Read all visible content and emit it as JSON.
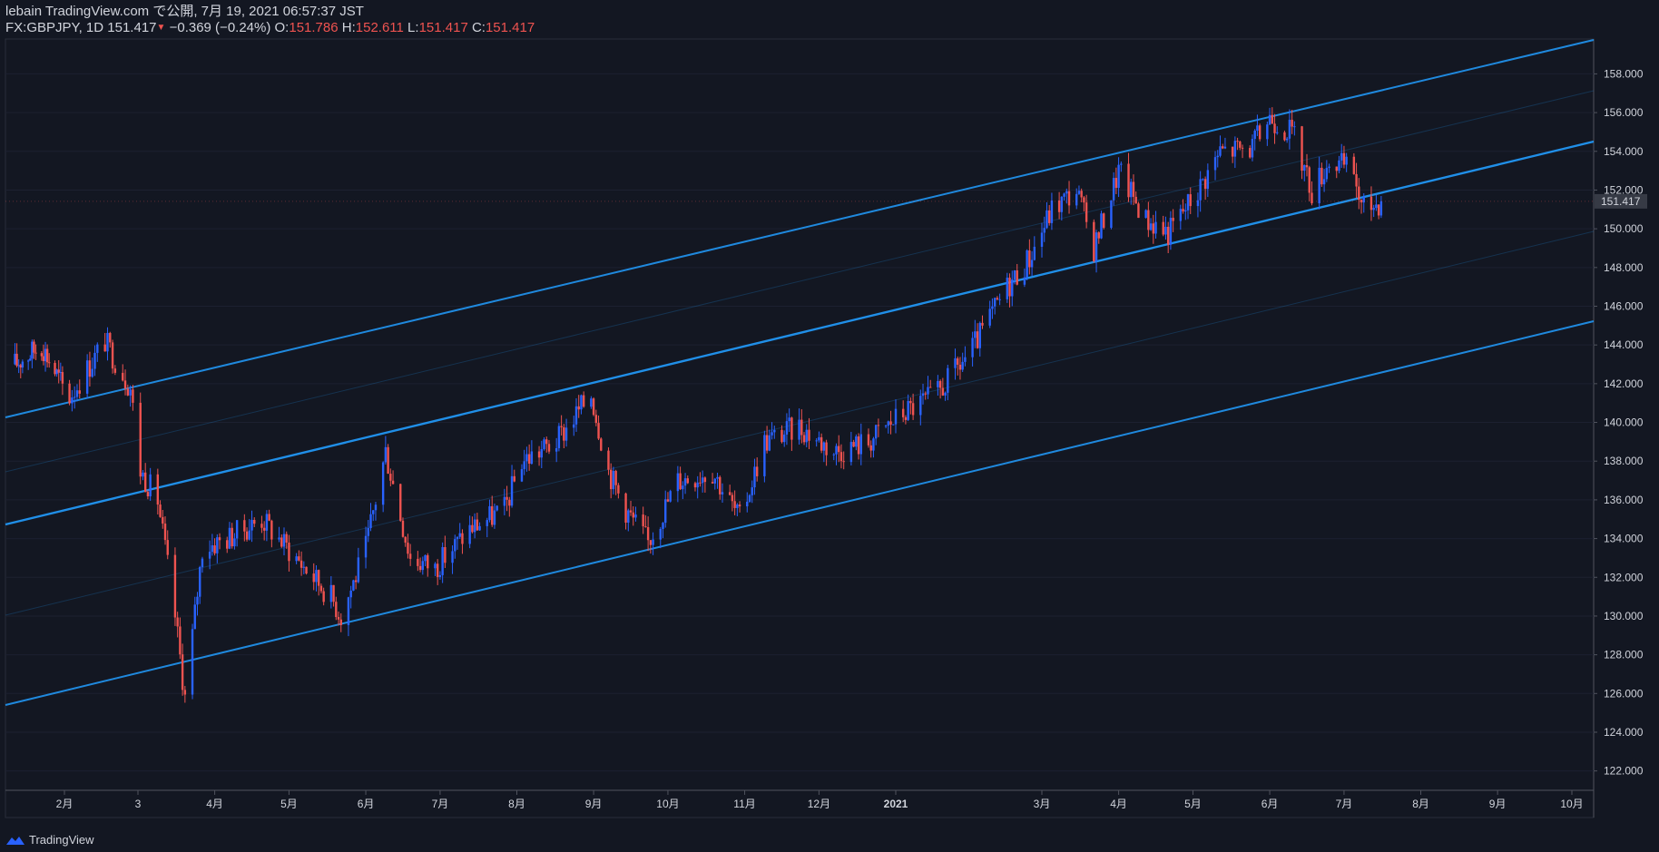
{
  "header": {
    "publish_line": "lebain TradingView.com で公開, 7月 19, 2021 06:57:37 JST",
    "symbol": "FX:GBPJPY, 1D",
    "last_price": "151.417",
    "change": "−0.369 (−0.24%)",
    "o_label": "O:",
    "o_value": "151.786",
    "h_label": "H:",
    "h_value": "152.611",
    "l_label": "L:",
    "l_value": "151.417",
    "c_label": "C:",
    "c_value": "151.417"
  },
  "footer": {
    "brand": "TradingView"
  },
  "colors": {
    "background": "#131722",
    "up": "#2962ff",
    "down": "#ef5350",
    "channel": "#2196f3",
    "text": "#d1d4dc"
  },
  "chart_data": {
    "type": "candlestick",
    "symbol": "GBPJPY",
    "timeframe": "1D",
    "ylim": [
      121,
      159.8
    ],
    "y_ticks": [
      "122.000",
      "124.000",
      "126.000",
      "128.000",
      "130.000",
      "132.000",
      "134.000",
      "136.000",
      "138.000",
      "140.000",
      "142.000",
      "144.000",
      "146.000",
      "148.000",
      "150.000",
      "152.000",
      "154.000",
      "156.000",
      "158.000"
    ],
    "x_ticks": [
      "2月",
      "3",
      "4月",
      "5月",
      "6月",
      "7月",
      "8月",
      "9月",
      "10月",
      "11月",
      "12月",
      "2021",
      "3月",
      "4月",
      "5月",
      "6月",
      "7月",
      "8月",
      "9月",
      "10月"
    ],
    "last_price_label": "151.417",
    "close_series": [
      {
        "date": "2020-01-06",
        "close": 143.0
      },
      {
        "date": "2020-01-20",
        "close": 144.0
      },
      {
        "date": "2020-02-03",
        "close": 141.3
      },
      {
        "date": "2020-02-17",
        "close": 144.2
      },
      {
        "date": "2020-02-27",
        "close": 141.8
      },
      {
        "date": "2020-03-02",
        "close": 137.5
      },
      {
        "date": "2020-03-09",
        "close": 136.0
      },
      {
        "date": "2020-03-16",
        "close": 130.0
      },
      {
        "date": "2020-03-20",
        "close": 125.8
      },
      {
        "date": "2020-03-23",
        "close": 129.0
      },
      {
        "date": "2020-03-27",
        "close": 133.5
      },
      {
        "date": "2020-04-06",
        "close": 134.0
      },
      {
        "date": "2020-04-20",
        "close": 135.0
      },
      {
        "date": "2020-05-04",
        "close": 133.0
      },
      {
        "date": "2020-05-18",
        "close": 131.0
      },
      {
        "date": "2020-05-22",
        "close": 130.0
      },
      {
        "date": "2020-06-01",
        "close": 133.5
      },
      {
        "date": "2020-06-09",
        "close": 138.5
      },
      {
        "date": "2020-06-19",
        "close": 133.0
      },
      {
        "date": "2020-06-29",
        "close": 132.5
      },
      {
        "date": "2020-07-13",
        "close": 134.5
      },
      {
        "date": "2020-07-27",
        "close": 135.5
      },
      {
        "date": "2020-08-03",
        "close": 138.0
      },
      {
        "date": "2020-08-17",
        "close": 139.0
      },
      {
        "date": "2020-08-31",
        "close": 141.5
      },
      {
        "date": "2020-09-07",
        "close": 137.5
      },
      {
        "date": "2020-09-14",
        "close": 135.5
      },
      {
        "date": "2020-09-23",
        "close": 133.8
      },
      {
        "date": "2020-10-05",
        "close": 137.0
      },
      {
        "date": "2020-10-19",
        "close": 137.5
      },
      {
        "date": "2020-10-30",
        "close": 135.0
      },
      {
        "date": "2020-11-09",
        "close": 139.0
      },
      {
        "date": "2020-11-23",
        "close": 139.8
      },
      {
        "date": "2020-12-07",
        "close": 138.5
      },
      {
        "date": "2020-12-21",
        "close": 139.0
      },
      {
        "date": "2021-01-04",
        "close": 140.5
      },
      {
        "date": "2021-01-18",
        "close": 141.5
      },
      {
        "date": "2021-02-01",
        "close": 143.8
      },
      {
        "date": "2021-02-15",
        "close": 147.0
      },
      {
        "date": "2021-02-24",
        "close": 148.5
      },
      {
        "date": "2021-03-05",
        "close": 151.0
      },
      {
        "date": "2021-03-15",
        "close": 152.0
      },
      {
        "date": "2021-03-22",
        "close": 149.0
      },
      {
        "date": "2021-04-01",
        "close": 153.0
      },
      {
        "date": "2021-04-12",
        "close": 150.5
      },
      {
        "date": "2021-04-21",
        "close": 149.8
      },
      {
        "date": "2021-05-03",
        "close": 152.0
      },
      {
        "date": "2021-05-12",
        "close": 154.0
      },
      {
        "date": "2021-05-25",
        "close": 154.2
      },
      {
        "date": "2021-06-01",
        "close": 155.8
      },
      {
        "date": "2021-06-10",
        "close": 155.0
      },
      {
        "date": "2021-06-18",
        "close": 152.0
      },
      {
        "date": "2021-06-25",
        "close": 153.5
      },
      {
        "date": "2021-07-05",
        "close": 153.0
      },
      {
        "date": "2021-07-08",
        "close": 151.0
      },
      {
        "date": "2021-07-16",
        "close": 151.417
      }
    ]
  }
}
